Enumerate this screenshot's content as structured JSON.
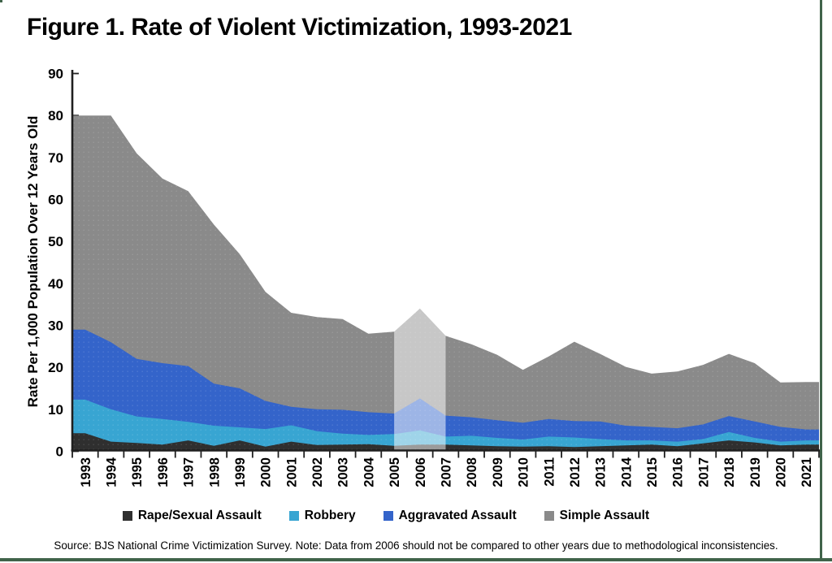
{
  "figure": {
    "title": "Figure 1. Rate of Violent Victimization, 1993-2021",
    "source_note": "Source: BJS National Crime Victimization Survey. Note: Data from 2006 should not be compared to other years due to methodological inconsistencies."
  },
  "frame": {
    "border_color": "#40634a"
  },
  "chart_data": {
    "type": "area",
    "stacked": true,
    "title": "Figure 1. Rate of Violent Victimization, 1993-2021",
    "xlabel": "",
    "ylabel": "Rate Per 1,000 Population Over 12 Years Old",
    "ylim": [
      0,
      90
    ],
    "ytick_labels": [
      "0",
      "10",
      "20",
      "30",
      "40",
      "50",
      "60",
      "70",
      "80",
      "90"
    ],
    "grid": false,
    "legend_position": "bottom",
    "axis_color": "#1f1f1f",
    "categories": [
      "1993",
      "1994",
      "1995",
      "1996",
      "1997",
      "1998",
      "1999",
      "2000",
      "2001",
      "2002",
      "2003",
      "2004",
      "2005",
      "2006",
      "2007",
      "2008",
      "2009",
      "2010",
      "2011",
      "2012",
      "2013",
      "2014",
      "2015",
      "2016",
      "2017",
      "2018",
      "2019",
      "2020",
      "2021"
    ],
    "series": [
      {
        "name": "Rape/Sexual Assault",
        "color": "#2f2f2f",
        "values": [
          4.3,
          2.3,
          2.0,
          1.6,
          2.6,
          1.3,
          2.6,
          1.1,
          2.3,
          1.5,
          1.6,
          1.7,
          1.3,
          1.6,
          1.6,
          1.4,
          1.2,
          1.1,
          1.2,
          1.0,
          1.2,
          1.4,
          1.6,
          1.2,
          1.9,
          2.6,
          2.1,
          1.4,
          1.6
        ]
      },
      {
        "name": "Robbery",
        "color": "#38a5d2",
        "values": [
          8.0,
          7.7,
          6.3,
          6.1,
          4.4,
          4.8,
          3.1,
          4.2,
          3.9,
          3.3,
          2.6,
          2.2,
          2.8,
          3.4,
          1.9,
          2.3,
          2.0,
          1.7,
          2.3,
          2.3,
          1.7,
          1.2,
          1.0,
          1.1,
          1.0,
          2.0,
          1.1,
          0.9,
          1.0
        ]
      },
      {
        "name": "Aggravated Assault",
        "color": "#3464ca",
        "values": [
          16.7,
          16.0,
          13.7,
          13.3,
          13.3,
          10.0,
          9.3,
          6.7,
          4.4,
          5.2,
          5.7,
          5.4,
          4.9,
          7.6,
          5.0,
          4.4,
          4.2,
          4.0,
          4.2,
          3.9,
          4.2,
          3.5,
          3.2,
          3.2,
          3.5,
          3.8,
          3.9,
          3.5,
          2.6
        ]
      },
      {
        "name": "Simple Assault",
        "color": "#8a8a8a",
        "values": [
          51.0,
          54.0,
          49.0,
          44.0,
          41.7,
          37.9,
          32.0,
          26.0,
          22.4,
          22.0,
          21.6,
          18.7,
          19.5,
          21.4,
          19.0,
          17.4,
          15.6,
          12.6,
          14.9,
          18.9,
          16.1,
          14.0,
          12.7,
          13.5,
          14.2,
          14.8,
          13.9,
          10.6,
          11.3
        ]
      }
    ],
    "highlight": {
      "category": "2006",
      "fill": "rgba(255,255,255,0.52)",
      "reason": "Data from 2006 should not be compared to other years due to methodological inconsistencies."
    }
  }
}
